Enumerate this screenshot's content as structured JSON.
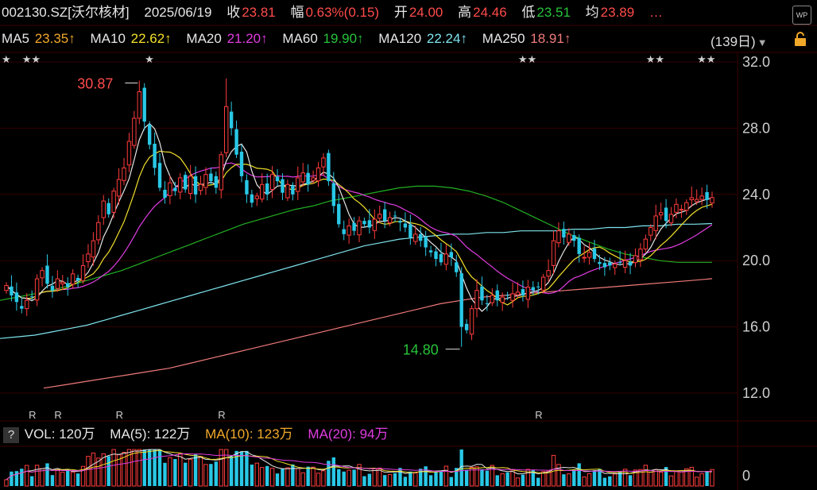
{
  "header": {
    "code": "002130.SZ[沃尔核材]",
    "date": "2025/06/19",
    "close_label": "收",
    "close": "23.81",
    "change_label": "幅",
    "change": "0.63%(0.15)",
    "open_label": "开",
    "open": "24.00",
    "high_label": "高",
    "high": "24.46",
    "low_label": "低",
    "low": "23.51",
    "avg_label": "均",
    "avg": "23.89",
    "more": "…"
  },
  "ma_legend": {
    "ma5": "MA5",
    "ma5_val": "23.35↑",
    "ma10": "MA10",
    "ma10_val": "22.62↑",
    "ma20": "MA20",
    "ma20_val": "21.20↑",
    "ma60": "MA60",
    "ma60_val": "19.90↑",
    "ma120": "MA120",
    "ma120_val": "22.24↑",
    "ma250": "MA250",
    "ma250_val": "18.91↑"
  },
  "period": {
    "label": "(139日)"
  },
  "wp_icon": "WP",
  "vol_legend": {
    "help": "?",
    "vol": "VOL: 120万",
    "ma5": "MA(5): 122万",
    "ma10": "MA(10): 123万",
    "ma20": "MA(20): 94万"
  },
  "colors": {
    "up": "#ff3c3c",
    "down": "#29c8e6",
    "ma5": "#e6e6e6",
    "ma10": "#f2e02a",
    "ma20": "#e03ce0",
    "ma60": "#22b022",
    "ma120": "#7ee4ee",
    "ma250": "#f07a7a"
  },
  "chart_data": {
    "type": "candlestick",
    "ylim": [
      10.5,
      33.0
    ],
    "yticks": [
      "32.0",
      "28.0",
      "24.0",
      "20.0",
      "16.0",
      "12.0"
    ],
    "vol_tick": "0",
    "annotations": [
      {
        "text": "30.87",
        "index": 26,
        "price": 30.87,
        "color": "#ff4b4b"
      },
      {
        "text": "14.80",
        "index": 89,
        "price": 14.8,
        "color": "#27c43a"
      }
    ],
    "stars": [
      {
        "index": 0,
        "text": "★"
      },
      {
        "index": 4,
        "text": "★★"
      },
      {
        "index": 28,
        "text": "★"
      },
      {
        "index": 101,
        "text": "★★"
      },
      {
        "index": 126,
        "text": "★★"
      },
      {
        "index": 136,
        "text": "★★"
      }
    ],
    "r_marks": [
      5,
      10,
      22,
      42,
      104
    ],
    "closes": [
      18.5,
      17.9,
      17.5,
      17.1,
      17.6,
      17.8,
      18.9,
      19.4,
      18.6,
      18.2,
      18.9,
      18.7,
      18.4,
      19.2,
      18.8,
      19.7,
      20.4,
      21.2,
      22.3,
      23.6,
      22.8,
      24.2,
      24.9,
      25.6,
      27.2,
      28.6,
      30.2,
      28.4,
      27.0,
      25.6,
      24.4,
      23.8,
      24.7,
      24.2,
      25.0,
      24.3,
      25.1,
      24.0,
      24.6,
      25.2,
      24.8,
      24.4,
      26.4,
      29.3,
      28.0,
      26.4,
      25.1,
      24.0,
      23.5,
      23.9,
      24.6,
      24.0,
      25.2,
      24.8,
      24.1,
      24.6,
      24.0,
      25.0,
      25.3,
      24.6,
      25.0,
      25.6,
      26.2,
      24.8,
      23.3,
      22.2,
      21.6,
      22.1,
      21.8,
      22.4,
      22.2,
      22.0,
      22.5,
      22.8,
      22.4,
      22.6,
      22.7,
      22.3,
      22.0,
      21.4,
      21.6,
      21.2,
      20.8,
      20.5,
      20.1,
      19.9,
      20.4,
      20.2,
      19.3,
      16.0,
      15.8,
      17.1,
      18.2,
      17.6,
      17.4,
      17.9,
      17.6,
      17.8,
      17.9,
      18.0,
      18.1,
      17.9,
      18.4,
      18.2,
      18.4,
      19.0,
      19.4,
      21.2,
      21.8,
      21.4,
      21.6,
      21.2,
      20.4,
      20.2,
      20.5,
      20.1,
      19.8,
      19.6,
      19.7,
      19.8,
      19.9,
      20.0,
      19.7,
      20.3,
      20.7,
      21.3,
      22.0,
      22.7,
      22.9,
      22.4,
      22.8,
      23.4,
      23.1,
      23.5,
      23.8,
      23.7,
      23.9,
      23.66,
      23.81
    ],
    "ma60": [
      17.6,
      17.8,
      18.0,
      18.2,
      18.5,
      18.8,
      19.1,
      19.4,
      19.8,
      20.2,
      20.6,
      21.0,
      21.4,
      21.8,
      22.2,
      22.5,
      22.8,
      23.1,
      23.3,
      23.6,
      23.8,
      24.0,
      24.2,
      24.4,
      24.5,
      24.5,
      24.4,
      24.2,
      23.9,
      23.5,
      23.0,
      22.5,
      22.0,
      21.5,
      21.1,
      20.7,
      20.4,
      20.2,
      20.0,
      19.9,
      19.9,
      19.9
    ],
    "ma120": [
      15.3,
      15.4,
      15.5,
      15.7,
      15.9,
      16.1,
      16.4,
      16.7,
      17.0,
      17.3,
      17.6,
      17.9,
      18.2,
      18.5,
      18.8,
      19.1,
      19.4,
      19.7,
      20.0,
      20.3,
      20.6,
      20.9,
      21.1,
      21.3,
      21.4,
      21.5,
      21.6,
      21.6,
      21.7,
      21.7,
      21.8,
      21.8,
      21.8,
      21.9,
      21.9,
      22.0,
      22.0,
      22.1,
      22.1,
      22.2,
      22.2,
      22.24
    ],
    "ma250": [
      12.3,
      12.5,
      12.7,
      12.9,
      13.1,
      13.3,
      13.5,
      13.8,
      14.1,
      14.4,
      14.7,
      15.0,
      15.3,
      15.6,
      15.9,
      16.2,
      16.5,
      16.8,
      17.1,
      17.4,
      17.6,
      17.8,
      17.9,
      18.0,
      18.1,
      18.2,
      18.3,
      18.4,
      18.5,
      18.6,
      18.7,
      18.8,
      18.91
    ]
  }
}
